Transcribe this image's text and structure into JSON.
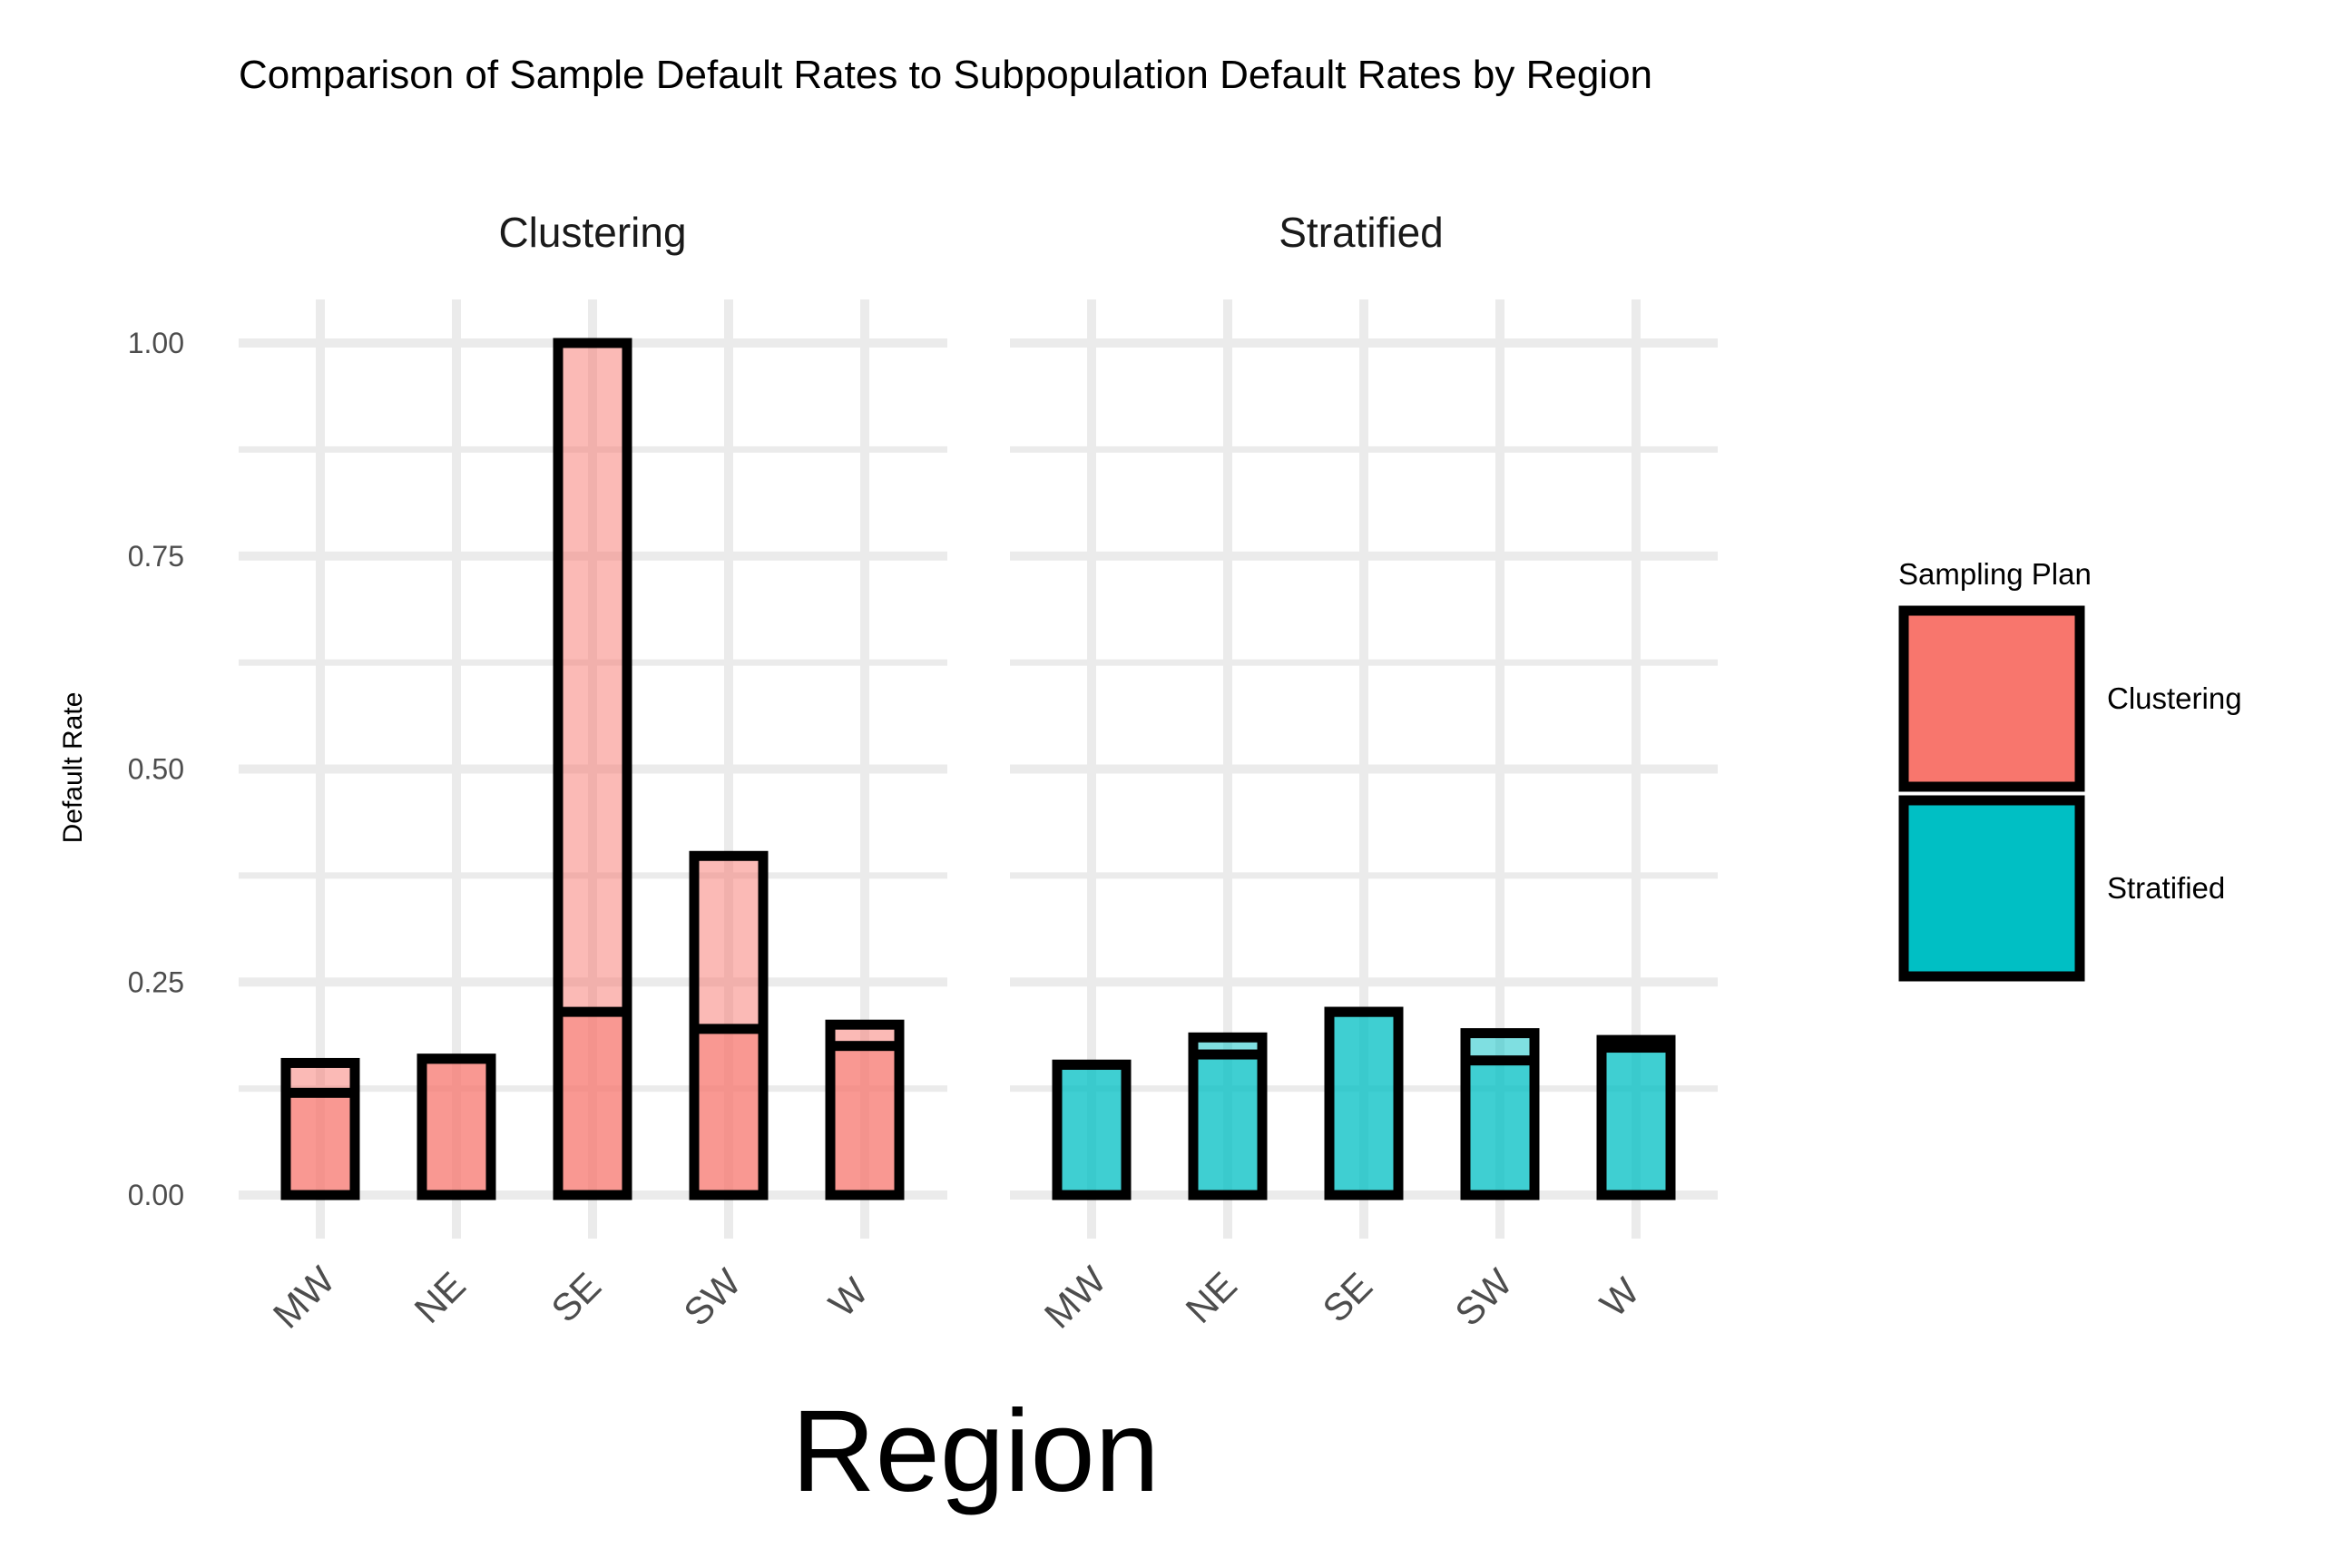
{
  "chart_data": {
    "type": "bar",
    "title": "Comparison of Sample Default Rates to Subpopulation Default Rates by Region",
    "xlabel": "Region",
    "ylabel": "Default Rate",
    "ylim": [
      0,
      1
    ],
    "yticks": [
      "0.00",
      "0.25",
      "0.50",
      "0.75",
      "1.00"
    ],
    "ytick_values": [
      0,
      0.25,
      0.5,
      0.75,
      1.0
    ],
    "grid": true,
    "legend": {
      "title": "Sampling Plan",
      "position": "right",
      "entries": [
        {
          "label": "Clustering",
          "color": "#F8766D"
        },
        {
          "label": "Stratified",
          "color": "#00BFC4"
        }
      ]
    },
    "categories": [
      "MW",
      "NE",
      "SE",
      "SW",
      "W"
    ],
    "panels": [
      {
        "name": "Clustering",
        "color": "#F8766D",
        "sample_rate": [
          0.155,
          0.16,
          1.0,
          0.398,
          0.2
        ],
        "subpopulation_rate": [
          0.12,
          0.16,
          0.215,
          0.195,
          0.175
        ]
      },
      {
        "name": "Stratified",
        "color": "#00BFC4",
        "sample_rate": [
          0.153,
          0.185,
          0.215,
          0.19,
          0.182
        ],
        "subpopulation_rate": [
          0.153,
          0.165,
          0.215,
          0.158,
          0.173
        ]
      }
    ]
  }
}
